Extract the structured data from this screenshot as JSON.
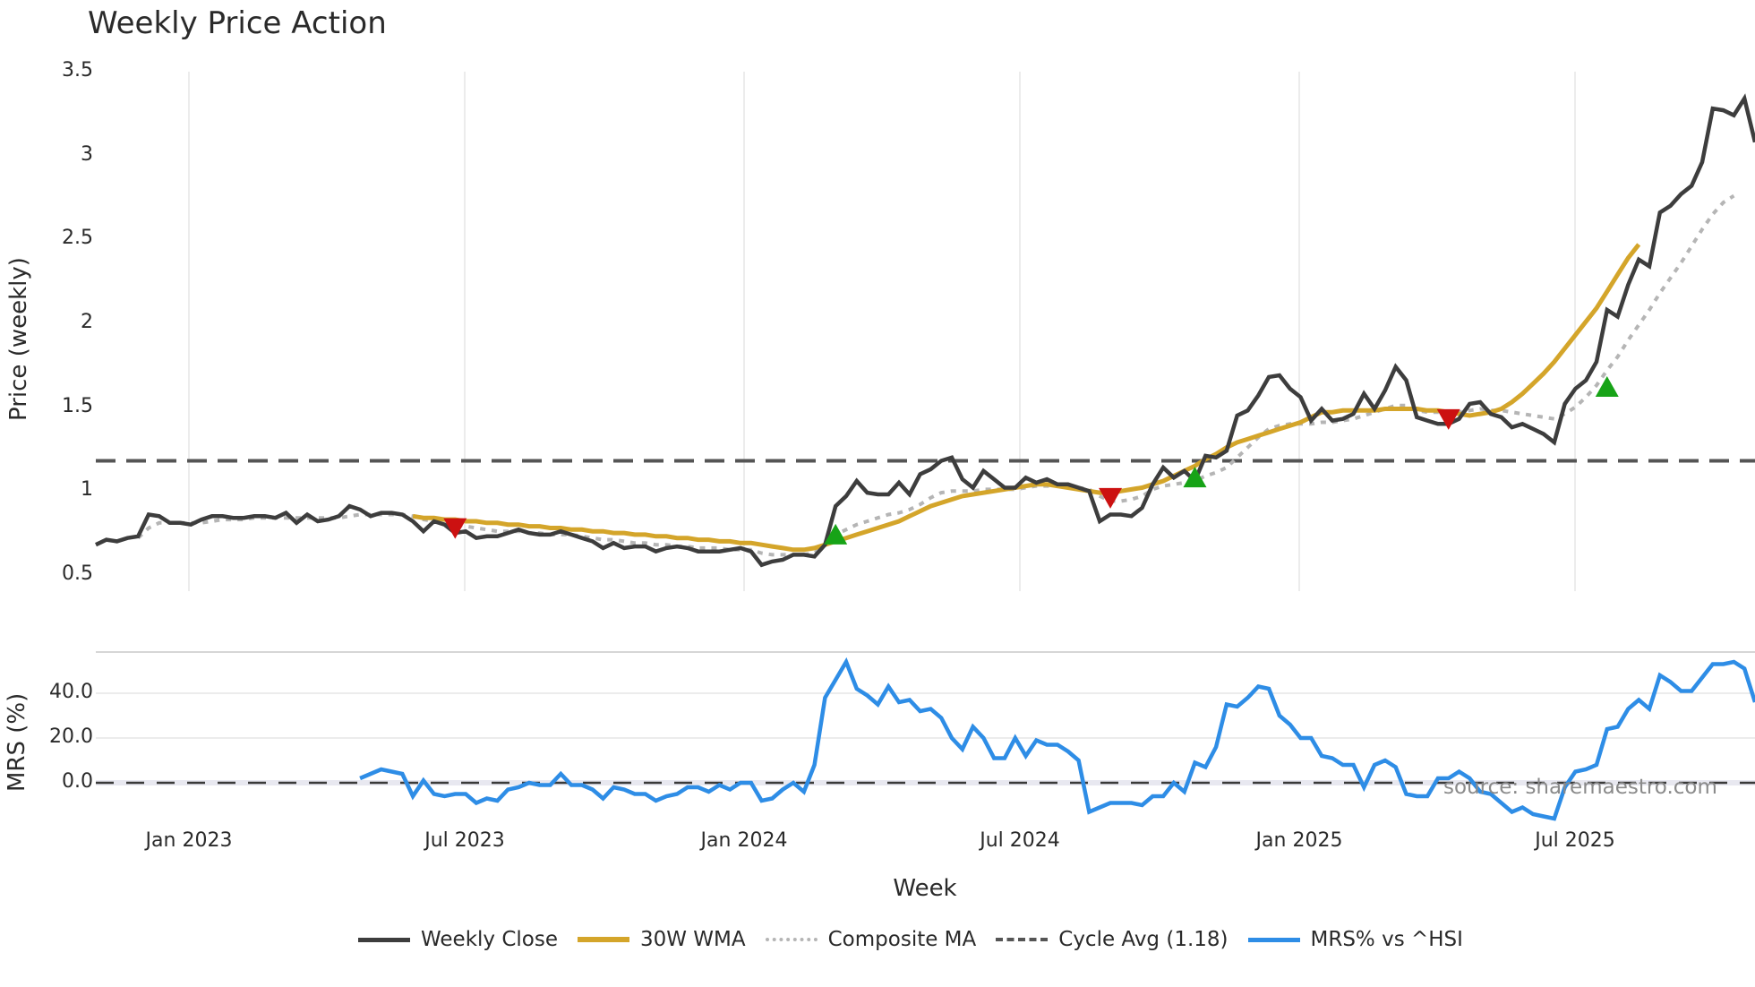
{
  "header": {
    "title": "Weekly Price Action"
  },
  "axes": {
    "price_ylabel": "Price (weekly)",
    "mrs_ylabel": "MRS (%)",
    "xlabel": "Week",
    "price_ticks": [
      "3.5",
      "3",
      "2.5",
      "2",
      "1.5",
      "1",
      "0.5"
    ],
    "mrs_ticks": [
      "40.0",
      "20.0",
      "0.0"
    ],
    "x_ticks": [
      "Jan 2023",
      "Jul 2023",
      "Jan 2024",
      "Jul 2024",
      "Jan 2025",
      "Jul 2025"
    ]
  },
  "legend": {
    "items": [
      {
        "label": "Weekly Close",
        "color": "#3d3d3d",
        "style": "solid"
      },
      {
        "label": "30W WMA",
        "color": "#d4a52a",
        "style": "solid"
      },
      {
        "label": "Composite MA",
        "color": "#b5b5b5",
        "style": "dotted"
      },
      {
        "label": "Cycle Avg (1.18)",
        "color": "#555555",
        "style": "dashed"
      },
      {
        "label": "MRS% vs ^HSI",
        "color": "#2e8de6",
        "style": "solid"
      }
    ]
  },
  "source": "source: sharemaestro.com",
  "colors": {
    "close": "#3d3d3d",
    "wma": "#d4a52a",
    "composite": "#b5b5b5",
    "cycle": "#555555",
    "mrs": "#2e8de6",
    "buy": "#17a317",
    "sell": "#cc1111",
    "grid": "#ececec"
  },
  "chart_data": [
    {
      "type": "line",
      "title": "Weekly Price Action",
      "xlabel": "Week",
      "ylabel": "Price (weekly)",
      "ylim": [
        0.5,
        3.5
      ],
      "x_tick_labels": [
        "Jan 2023",
        "Jul 2023",
        "Jan 2024",
        "Jul 2024",
        "Jan 2025",
        "Jul 2025"
      ],
      "grid": "vertical",
      "x_start_week_index": 0,
      "series": [
        {
          "name": "Weekly Close",
          "values": [
            0.68,
            0.71,
            0.7,
            0.72,
            0.73,
            0.86,
            0.85,
            0.81,
            0.81,
            0.8,
            0.83,
            0.85,
            0.85,
            0.84,
            0.84,
            0.85,
            0.85,
            0.84,
            0.87,
            0.81,
            0.86,
            0.82,
            0.83,
            0.85,
            0.91,
            0.89,
            0.85,
            0.87,
            0.87,
            0.86,
            0.82,
            0.76,
            0.82,
            0.8,
            0.75,
            0.76,
            0.72,
            0.73,
            0.73,
            0.75,
            0.77,
            0.75,
            0.74,
            0.74,
            0.76,
            0.74,
            0.72,
            0.7,
            0.66,
            0.69,
            0.66,
            0.67,
            0.67,
            0.64,
            0.66,
            0.67,
            0.66,
            0.64,
            0.64,
            0.64,
            0.65,
            0.66,
            0.64,
            0.56,
            0.58,
            0.59,
            0.62,
            0.62,
            0.61,
            0.68,
            0.91,
            0.97,
            1.06,
            0.99,
            0.98,
            0.98,
            1.05,
            0.98,
            1.1,
            1.13,
            1.18,
            1.2,
            1.07,
            1.02,
            1.12,
            1.07,
            1.02,
            1.02,
            1.08,
            1.05,
            1.07,
            1.04,
            1.04,
            1.02,
            1.0,
            0.82,
            0.86,
            0.86,
            0.85,
            0.9,
            1.04,
            1.14,
            1.08,
            1.12,
            1.06,
            1.21,
            1.2,
            1.24,
            1.45,
            1.48,
            1.57,
            1.68,
            1.69,
            1.61,
            1.56,
            1.42,
            1.49,
            1.42,
            1.43,
            1.46,
            1.58,
            1.49,
            1.6,
            1.74,
            1.66,
            1.44,
            1.42,
            1.4,
            1.4,
            1.43,
            1.52,
            1.53,
            1.46,
            1.44,
            1.38,
            1.4,
            1.37,
            1.34,
            1.29,
            1.52,
            1.61,
            1.66,
            1.77,
            2.08,
            2.04,
            2.23,
            2.38,
            2.34,
            2.66,
            2.7,
            2.77,
            2.82,
            2.96,
            3.28,
            3.27,
            3.24,
            3.34,
            3.08
          ]
        },
        {
          "name": "30W WMA",
          "start_index": 30,
          "values": [
            0.85,
            0.84,
            0.84,
            0.83,
            0.83,
            0.82,
            0.82,
            0.81,
            0.81,
            0.8,
            0.8,
            0.79,
            0.79,
            0.78,
            0.78,
            0.77,
            0.77,
            0.76,
            0.76,
            0.75,
            0.75,
            0.74,
            0.74,
            0.73,
            0.73,
            0.72,
            0.72,
            0.71,
            0.71,
            0.7,
            0.7,
            0.69,
            0.69,
            0.68,
            0.67,
            0.66,
            0.65,
            0.65,
            0.66,
            0.68,
            0.7,
            0.72,
            0.74,
            0.76,
            0.78,
            0.8,
            0.82,
            0.85,
            0.88,
            0.91,
            0.93,
            0.95,
            0.97,
            0.98,
            0.99,
            1.0,
            1.01,
            1.02,
            1.03,
            1.04,
            1.04,
            1.03,
            1.02,
            1.01,
            1.0,
            0.99,
            0.99,
            1.0,
            1.01,
            1.02,
            1.04,
            1.06,
            1.09,
            1.12,
            1.15,
            1.19,
            1.22,
            1.26,
            1.29,
            1.31,
            1.33,
            1.35,
            1.37,
            1.39,
            1.41,
            1.44,
            1.47,
            1.47,
            1.48,
            1.48,
            1.48,
            1.48,
            1.49,
            1.49,
            1.49,
            1.49,
            1.48,
            1.48,
            1.47,
            1.46,
            1.45,
            1.46,
            1.47,
            1.49,
            1.53,
            1.58,
            1.64,
            1.7,
            1.77,
            1.85,
            1.93,
            2.01,
            2.09,
            2.19,
            2.29,
            2.39,
            2.47
          ]
        },
        {
          "name": "Composite MA",
          "values": [
            null,
            null,
            null,
            null,
            0.72,
            0.78,
            0.81,
            0.81,
            0.81,
            0.81,
            0.81,
            0.82,
            0.83,
            0.83,
            0.83,
            0.84,
            0.84,
            0.84,
            0.84,
            0.84,
            0.84,
            0.84,
            0.84,
            0.84,
            0.85,
            0.86,
            0.86,
            0.86,
            0.86,
            0.86,
            0.85,
            0.83,
            0.82,
            0.81,
            0.8,
            0.79,
            0.78,
            0.77,
            0.76,
            0.76,
            0.76,
            0.75,
            0.75,
            0.74,
            0.74,
            0.74,
            0.73,
            0.72,
            0.71,
            0.71,
            0.7,
            0.69,
            0.69,
            0.68,
            0.68,
            0.67,
            0.67,
            0.66,
            0.66,
            0.66,
            0.65,
            0.65,
            0.65,
            0.63,
            0.62,
            0.62,
            0.62,
            0.62,
            0.63,
            0.68,
            0.74,
            0.77,
            0.8,
            0.82,
            0.84,
            0.86,
            0.87,
            0.89,
            0.92,
            0.96,
            0.99,
            1.0,
            1.0,
            1.0,
            1.01,
            1.01,
            1.01,
            1.01,
            1.02,
            1.03,
            1.03,
            1.03,
            1.02,
            1.02,
            1.01,
            0.97,
            0.94,
            0.94,
            0.95,
            0.97,
            1.01,
            1.03,
            1.04,
            1.05,
            1.06,
            1.09,
            1.11,
            1.14,
            1.2,
            1.26,
            1.32,
            1.37,
            1.39,
            1.4,
            1.4,
            1.4,
            1.41,
            1.41,
            1.42,
            1.43,
            1.45,
            1.47,
            1.49,
            1.51,
            1.51,
            1.48,
            1.47,
            1.47,
            1.47,
            1.47,
            1.48,
            1.49,
            1.48,
            1.48,
            1.47,
            1.46,
            1.45,
            1.44,
            1.43,
            1.46,
            1.5,
            1.56,
            1.63,
            1.72,
            1.8,
            1.9,
            1.99,
            2.08,
            2.18,
            2.27,
            2.36,
            2.46,
            2.56,
            2.65,
            2.72,
            2.76
          ]
        },
        {
          "name": "Cycle Avg (1.18)",
          "constant": 1.18
        }
      ],
      "markers": [
        {
          "type": "sell",
          "index": 34,
          "value": 0.79
        },
        {
          "type": "buy",
          "index": 70,
          "value": 0.73
        },
        {
          "type": "sell",
          "index": 96,
          "value": 0.97
        },
        {
          "type": "buy",
          "index": 104,
          "value": 1.07
        },
        {
          "type": "sell",
          "index": 128,
          "value": 1.44
        },
        {
          "type": "buy",
          "index": 143,
          "value": 1.61
        }
      ]
    },
    {
      "type": "line",
      "ylabel": "MRS (%)",
      "ylim": [
        -20,
        55
      ],
      "y_ticks": [
        40.0,
        20.0,
        0.0
      ],
      "reference_line": 0.0,
      "series": [
        {
          "name": "MRS% vs ^HSI",
          "start_index": 25,
          "values": [
            2,
            4,
            6,
            5,
            4,
            -6,
            1,
            -5,
            -6,
            -5,
            -5,
            -9,
            -7,
            -8,
            -3,
            -2,
            0,
            -1,
            -1,
            4,
            -1,
            -1,
            -3,
            -7,
            -2,
            -3,
            -5,
            -5,
            -8,
            -6,
            -5,
            -2,
            -2,
            -4,
            -1,
            -3,
            0,
            0,
            -8,
            -7,
            -3,
            0,
            -4,
            8,
            38,
            46,
            54,
            42,
            39,
            35,
            43,
            36,
            37,
            32,
            33,
            29,
            20,
            15,
            25,
            20,
            11,
            11,
            20,
            12,
            19,
            17,
            17,
            14,
            10,
            -13,
            -11,
            -9,
            -9,
            -9,
            -10,
            -6,
            -6,
            0,
            -4,
            9,
            7,
            16,
            35,
            34,
            38,
            43,
            42,
            30,
            26,
            20,
            20,
            12,
            11,
            8,
            8,
            -2,
            8,
            10,
            7,
            -5,
            -6,
            -6,
            2,
            2,
            5,
            2,
            -4,
            -5,
            -9,
            -13,
            -11,
            -14,
            -15,
            -16,
            -2,
            5,
            6,
            8,
            24,
            25,
            33,
            37,
            33,
            48,
            45,
            41,
            41,
            47,
            53,
            53,
            54,
            51,
            36
          ]
        }
      ]
    }
  ]
}
